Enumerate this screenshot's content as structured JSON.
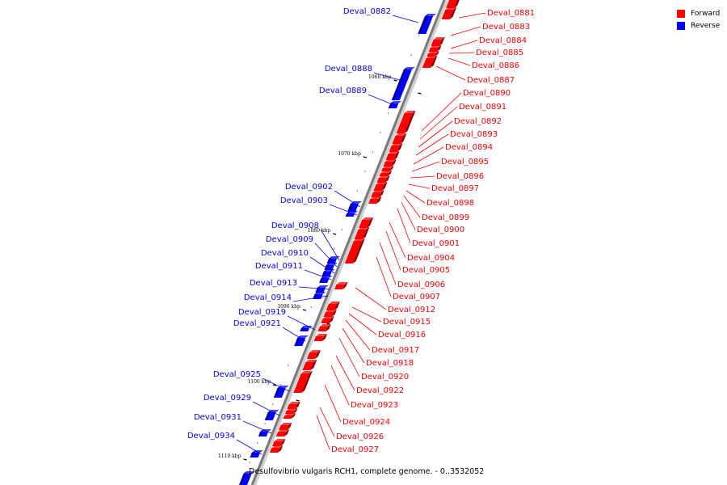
{
  "legend": {
    "forward": {
      "label": "Forward",
      "color": "#ff0000"
    },
    "reverse": {
      "label": "Reverse",
      "color": "#0000ff"
    }
  },
  "caption": "Desulfovibrio vulgaris RCH1, complete genome. - 0..3532052",
  "scale_marks": [
    "1060 kbp",
    "1070 kbp",
    "1080 kbp",
    "1090 kbp",
    "1100 kbp",
    "1110 kbp"
  ],
  "forward_genes": [
    "Deval_0881",
    "Deval_0883",
    "Deval_0884",
    "Deval_0885",
    "Deval_0886",
    "Deval_0887",
    "Deval_0890",
    "Deval_0891",
    "Deval_0892",
    "Deval_0893",
    "Deval_0894",
    "Deval_0895",
    "Deval_0896",
    "Deval_0897",
    "Deval_0898",
    "Deval_0899",
    "Deval_0900",
    "Deval_0901",
    "Deval_0904",
    "Deval_0905",
    "Deval_0906",
    "Deval_0907",
    "Deval_0912",
    "Deval_0915",
    "Deval_0916",
    "Deval_0917",
    "Deval_0918",
    "Deval_0920",
    "Deval_0922",
    "Deval_0923",
    "Deval_0924",
    "Deval_0926",
    "Deval_0927"
  ],
  "reverse_genes": [
    "Deval_0882",
    "Deval_0888",
    "Deval_0889",
    "Deval_0902",
    "Deval_0903",
    "Deval_0908",
    "Deval_0909",
    "Deval_0910",
    "Deval_0911",
    "Deval_0913",
    "Deval_0914",
    "Deval_0919",
    "Deval_0921",
    "Deval_0925",
    "Deval_0929",
    "Deval_0931",
    "Deval_0934"
  ]
}
